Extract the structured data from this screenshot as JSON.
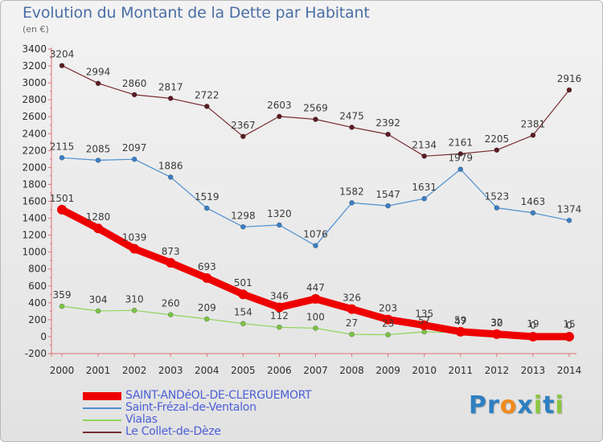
{
  "title": "Evolution du Montant de la Dette par Habitant",
  "unit_label": "(en €)",
  "logo": {
    "text": "Proxiti",
    "letters": [
      {
        "ch": "P",
        "color": "#2d7fc1"
      },
      {
        "ch": "r",
        "color": "#2d7fc1"
      },
      {
        "ch": "o",
        "color": "#f08a1c"
      },
      {
        "ch": "x",
        "color": "#2d7fc1"
      },
      {
        "ch": "i",
        "color": "#8cc63f"
      },
      {
        "ch": "t",
        "color": "#2d7fc1"
      },
      {
        "ch": "i",
        "color": "#8cc63f"
      }
    ]
  },
  "chart_data": {
    "type": "line",
    "title": "Evolution du Montant de la Dette par Habitant",
    "subtitle": "(en €)",
    "xlabel": "",
    "ylabel": "",
    "x": [
      "2000",
      "2001",
      "2002",
      "2003",
      "2004",
      "2005",
      "2006",
      "2007",
      "2008",
      "2009",
      "2010",
      "2011",
      "2012",
      "2013",
      "2014"
    ],
    "ylim": [
      -200,
      3400
    ],
    "yticks": [
      -200,
      0,
      200,
      400,
      600,
      800,
      1000,
      1200,
      1400,
      1600,
      1800,
      2000,
      2200,
      2400,
      2600,
      2800,
      3000,
      3200,
      3400
    ],
    "grid": false,
    "legend": "bottom-left",
    "series": [
      {
        "name": "SAINT-ANDéOL-DE-CLERGUEMORT",
        "color": "#ee0000",
        "values": [
          1501,
          1280,
          1039,
          873,
          693,
          501,
          346,
          447,
          326,
          203,
          135,
          59,
          30,
          0,
          0
        ],
        "labels": [
          "1501",
          "1280",
          "1039",
          "873",
          "693",
          "501",
          "346",
          "447",
          "326",
          "203",
          "135",
          "59",
          "30",
          "0",
          "0"
        ]
      },
      {
        "name": "Saint-Frézal-de-Ventalon",
        "color": "#4b8fd0",
        "values": [
          2115,
          2085,
          2097,
          1886,
          1519,
          1298,
          1320,
          1076,
          1582,
          1547,
          1631,
          1979,
          1523,
          1463,
          1374
        ],
        "labels": [
          "2115",
          "2085",
          "2097",
          "1886",
          "1519",
          "1298",
          "1320",
          "1076",
          "1582",
          "1547",
          "1631",
          "1979",
          "1523",
          "1463",
          "1374"
        ]
      },
      {
        "name": "Vialas",
        "color": "#8fd45a",
        "values": [
          359,
          304,
          310,
          260,
          209,
          154,
          112,
          100,
          27,
          23,
          57,
          47,
          32,
          19,
          15
        ],
        "labels": [
          "359",
          "304",
          "310",
          "260",
          "209",
          "154",
          "112",
          "100",
          "27",
          "23",
          "57",
          "47",
          "32",
          "19",
          "15"
        ]
      },
      {
        "name": "Le Collet-de-Dèze",
        "color": "#7a2c30",
        "values": [
          3204,
          2994,
          2860,
          2817,
          2722,
          2367,
          2603,
          2569,
          2475,
          2392,
          2134,
          2161,
          2205,
          2381,
          2916
        ],
        "labels": [
          "3204",
          "2994",
          "2860",
          "2817",
          "2722",
          "2367",
          "2603",
          "2569",
          "2475",
          "2392",
          "2134",
          "2161",
          "2205",
          "2381",
          "2916"
        ]
      }
    ]
  }
}
